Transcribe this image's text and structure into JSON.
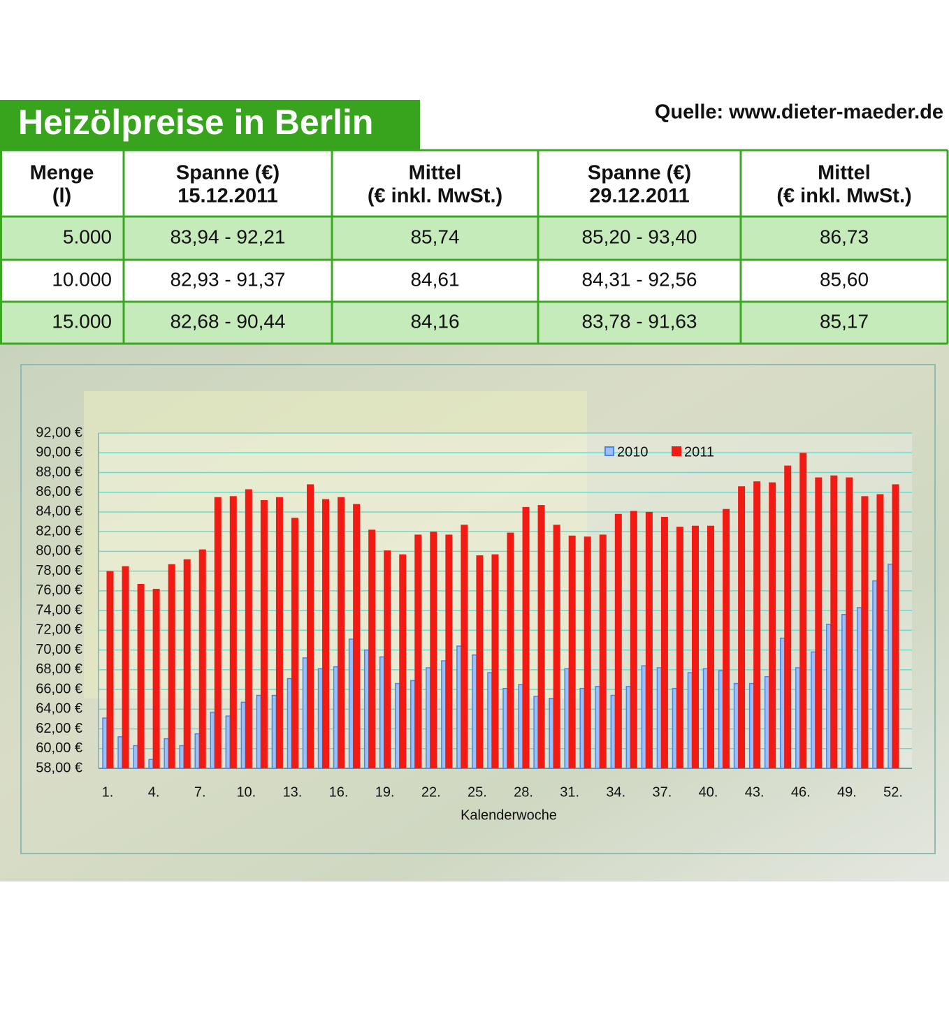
{
  "header": {
    "title": "Heizölpreise in Berlin",
    "source": "Quelle: www.dieter-maeder.de"
  },
  "table": {
    "headers": [
      [
        "Menge",
        "(l)"
      ],
      [
        "Spanne (€)",
        "15.12.2011"
      ],
      [
        "Mittel",
        "(€ inkl. MwSt.)"
      ],
      [
        "Spanne (€)",
        "29.12.2011"
      ],
      [
        "Mittel",
        "(€ inkl. MwSt.)"
      ]
    ],
    "rows": [
      [
        "5.000",
        "83,94 - 92,21",
        "85,74",
        "85,20 - 93,40",
        "86,73"
      ],
      [
        "10.000",
        "82,93 - 91,37",
        "84,61",
        "84,31 - 92,56",
        "85,60"
      ],
      [
        "15.000",
        "82,68 - 90,44",
        "84,16",
        "83,78 - 91,63",
        "85,17"
      ]
    ]
  },
  "chart_data": {
    "type": "bar",
    "x_label": "Kalenderwoche",
    "categories": [
      "1.",
      null,
      null,
      "4.",
      null,
      null,
      "7.",
      null,
      null,
      "10.",
      null,
      null,
      "13.",
      null,
      null,
      "16.",
      null,
      null,
      "19.",
      null,
      null,
      "22.",
      null,
      null,
      "25.",
      null,
      null,
      "28.",
      null,
      null,
      "31.",
      null,
      null,
      "34.",
      null,
      null,
      "37.",
      null,
      null,
      "40.",
      null,
      null,
      "43.",
      null,
      null,
      "46.",
      null,
      null,
      "49.",
      null,
      null,
      "52."
    ],
    "series": [
      {
        "name": "2010",
        "color": "#4a86e8",
        "values": [
          63.1,
          61.2,
          60.3,
          58.9,
          61.0,
          60.3,
          61.5,
          63.7,
          63.3,
          64.7,
          65.4,
          65.4,
          67.1,
          69.2,
          68.1,
          68.3,
          71.1,
          70.0,
          69.3,
          66.6,
          66.9,
          68.2,
          68.9,
          70.4,
          69.5,
          67.7,
          66.1,
          66.5,
          65.3,
          65.1,
          68.1,
          66.1,
          66.3,
          65.4,
          66.3,
          68.4,
          68.2,
          66.1,
          67.7,
          68.1,
          67.9,
          66.6,
          66.6,
          67.3,
          71.2,
          68.2,
          69.8,
          72.6,
          73.6,
          74.3,
          77.0,
          78.7
        ]
      },
      {
        "name": "2011",
        "color": "#f21b14",
        "values": [
          78.0,
          78.5,
          76.7,
          76.2,
          78.7,
          79.2,
          80.2,
          85.5,
          85.6,
          86.3,
          85.2,
          85.5,
          83.4,
          86.8,
          85.3,
          85.5,
          84.8,
          82.2,
          80.1,
          79.7,
          81.7,
          82.0,
          81.7,
          82.7,
          79.6,
          79.7,
          81.9,
          84.5,
          84.7,
          82.7,
          81.6,
          81.5,
          81.7,
          83.8,
          84.1,
          84.0,
          83.5,
          82.5,
          82.6,
          82.6,
          84.3,
          86.6,
          87.1,
          87.0,
          88.7,
          90.0,
          87.5,
          87.7,
          87.5,
          85.6,
          85.8,
          86.8
        ]
      }
    ],
    "ylim": [
      58,
      92
    ],
    "yticks": [
      {
        "value": 58,
        "label": "58,00 €"
      },
      {
        "value": 60,
        "label": "60,00 €"
      },
      {
        "value": 62,
        "label": "62,00 €"
      },
      {
        "value": 64,
        "label": "64,00 €"
      },
      {
        "value": 66,
        "label": "66,00 €"
      },
      {
        "value": 68,
        "label": "68,00 €"
      },
      {
        "value": 70,
        "label": "70,00 €"
      },
      {
        "value": 72,
        "label": "72,00 €"
      },
      {
        "value": 74,
        "label": "74,00 €"
      },
      {
        "value": 76,
        "label": "76,00 €"
      },
      {
        "value": 78,
        "label": "78,00 €"
      },
      {
        "value": 80,
        "label": "80,00 €"
      },
      {
        "value": 82,
        "label": "82,00 €"
      },
      {
        "value": 84,
        "label": "84,00 €"
      },
      {
        "value": 86,
        "label": "86,00 €"
      },
      {
        "value": 88,
        "label": "88,00 €"
      },
      {
        "value": 90,
        "label": "90,00 €"
      },
      {
        "value": 92,
        "label": "92,00 €"
      }
    ],
    "grid": true,
    "legend": "top"
  }
}
